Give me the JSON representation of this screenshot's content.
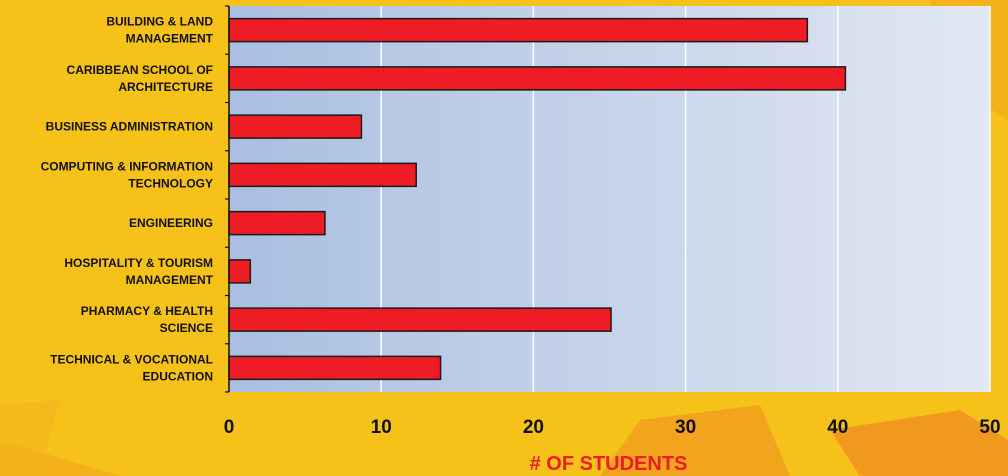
{
  "chart_data": {
    "type": "bar",
    "orientation": "horizontal",
    "categories": [
      [
        "BUILDING & LAND",
        "MANAGEMENT"
      ],
      [
        "CARIBBEAN SCHOOL OF",
        "ARCHITECTURE"
      ],
      [
        "BUSINESS ADMINISTRATION"
      ],
      [
        "COMPUTING & INFORMATION",
        "TECHNOLOGY"
      ],
      [
        "ENGINEERING"
      ],
      [
        "HOSPITALITY & TOURISM",
        "MANAGEMENT"
      ],
      [
        "PHARMACY & HEALTH",
        "SCIENCE"
      ],
      [
        "TECHNICAL & VOCATIONAL",
        "EDUCATION"
      ]
    ],
    "values": [
      38,
      40.5,
      8.7,
      12.3,
      6.3,
      1.4,
      25.1,
      13.9
    ],
    "xlabel": "# OF STUDENTS",
    "ylabel": "",
    "xlim": [
      0,
      50
    ],
    "xticks": [
      "0",
      "10",
      "20",
      "30",
      "40",
      "50"
    ],
    "grid": "vertical",
    "colors": {
      "bar": "#ee1c25",
      "bar_border": "#1a1a1a",
      "axis_title": "#ee1c25",
      "page_background": "#f6c21a",
      "plot_background_left": "#a9bfe0",
      "plot_background_right": "#e2e8f3"
    }
  }
}
